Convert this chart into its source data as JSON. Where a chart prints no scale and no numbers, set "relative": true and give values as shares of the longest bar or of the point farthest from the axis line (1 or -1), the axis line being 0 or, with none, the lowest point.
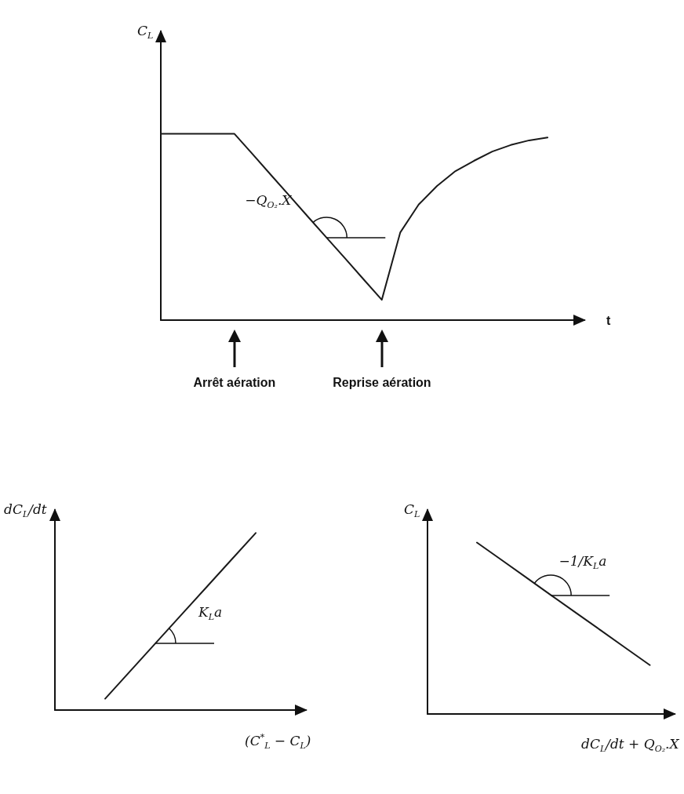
{
  "chart_data": [
    {
      "type": "line",
      "relative": true,
      "xlabel": "t",
      "ylabel": "C$_{L}$",
      "marker": "none",
      "line_style": "solid",
      "categories": [
        null,
        null,
        null,
        null,
        null,
        null,
        null,
        null,
        null,
        null,
        null,
        null,
        null,
        null,
        null,
        null,
        null,
        null,
        null,
        null,
        null,
        null,
        null,
        null
      ],
      "series": [
        {
          "color": "#1a1a1a",
          "values": [
            1,
            1,
            1,
            1,
            1,
            0.889,
            0.777,
            0.666,
            0.554,
            0.443,
            0.332,
            0.22,
            0.109,
            0.47,
            0.62,
            0.72,
            0.8,
            0.855,
            0.905,
            0.94,
            0.965,
            0.98,
            null,
            null
          ]
        }
      ],
      "annotations": [
        "−Q$_{O₂}$.X",
        "Arrêt aération",
        "Reprise aération"
      ]
    },
    {
      "type": "line",
      "relative": true,
      "xlabel": "(C$^{*}$$_{L}$ − C$_{L}$)",
      "ylabel": "dC$_{L}$/dt",
      "marker": "none",
      "line_style": "solid",
      "categories": [
        null,
        null,
        null,
        null,
        null,
        null,
        null,
        null,
        null,
        null,
        null
      ],
      "series": [
        {
          "color": "#1a1a1a",
          "values": [
            null,
            null,
            0.064,
            0.22,
            0.376,
            0.532,
            0.688,
            0.844,
            1,
            null,
            null
          ]
        }
      ],
      "annotations": [
        "K$_{L}$a"
      ]
    },
    {
      "type": "line",
      "relative": true,
      "xlabel": "dC$_{L}$/dt + Q$_{O₂}$.X",
      "ylabel": "C$_{L}$",
      "marker": "none",
      "line_style": "solid",
      "categories": [
        null,
        null,
        null,
        null,
        null,
        null,
        null,
        null,
        null,
        null,
        null
      ],
      "series": [
        {
          "color": "#1a1a1a",
          "values": [
            null,
            null,
            1,
            0.898,
            0.796,
            0.693,
            0.591,
            0.489,
            0.387,
            0.285,
            null
          ]
        }
      ],
      "annotations": [
        "−1/K$_{L}$a"
      ]
    }
  ]
}
